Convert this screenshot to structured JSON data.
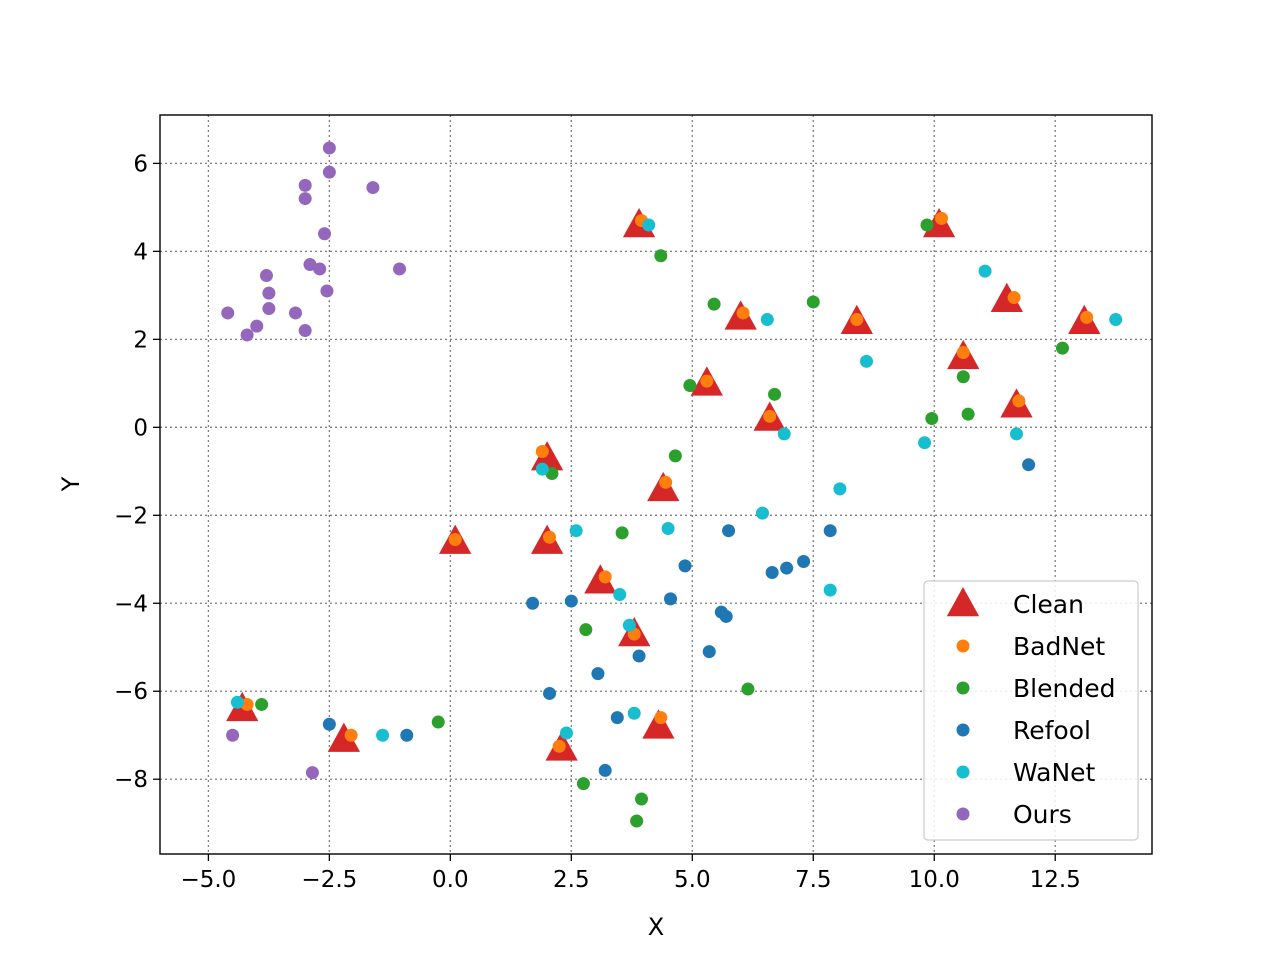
{
  "chart_data": {
    "type": "scatter",
    "title": "",
    "xlabel": "X",
    "ylabel": "Y",
    "xlim": [
      -6.0,
      14.5
    ],
    "ylim": [
      -9.7,
      7.1
    ],
    "xticks": [
      -5.0,
      -2.5,
      0.0,
      2.5,
      5.0,
      7.5,
      10.0,
      12.5
    ],
    "xtick_labels": [
      "−5.0",
      "−2.5",
      "0.0",
      "2.5",
      "5.0",
      "7.5",
      "10.0",
      "12.5"
    ],
    "yticks": [
      -8,
      -6,
      -4,
      -2,
      0,
      2,
      4,
      6
    ],
    "ytick_labels": [
      "−8",
      "−6",
      "−4",
      "−2",
      "0",
      "2",
      "4",
      "6"
    ],
    "grid": true,
    "legend_position": "lower-right",
    "series": [
      {
        "name": "Clean",
        "marker": "triangle",
        "color": "#d62728",
        "points": [
          [
            3.9,
            4.6
          ],
          [
            10.1,
            4.6
          ],
          [
            11.5,
            2.9
          ],
          [
            13.1,
            2.4
          ],
          [
            6.0,
            2.5
          ],
          [
            8.4,
            2.4
          ],
          [
            10.6,
            1.6
          ],
          [
            5.3,
            1.0
          ],
          [
            11.7,
            0.5
          ],
          [
            6.6,
            0.2
          ],
          [
            2.0,
            -0.7
          ],
          [
            4.4,
            -1.4
          ],
          [
            2.0,
            -2.6
          ],
          [
            0.1,
            -2.6
          ],
          [
            3.1,
            -3.5
          ],
          [
            3.8,
            -4.7
          ],
          [
            -4.3,
            -6.4
          ],
          [
            -2.2,
            -7.1
          ],
          [
            4.3,
            -6.8
          ],
          [
            2.3,
            -7.3
          ]
        ]
      },
      {
        "name": "BadNet",
        "marker": "dot",
        "color": "#ff7f0e",
        "points": [
          [
            3.95,
            4.7
          ],
          [
            10.15,
            4.75
          ],
          [
            11.65,
            2.95
          ],
          [
            13.15,
            2.5
          ],
          [
            6.05,
            2.6
          ],
          [
            8.4,
            2.45
          ],
          [
            10.6,
            1.7
          ],
          [
            5.3,
            1.05
          ],
          [
            11.75,
            0.6
          ],
          [
            6.6,
            0.25
          ],
          [
            1.9,
            -0.55
          ],
          [
            4.45,
            -1.25
          ],
          [
            2.05,
            -2.5
          ],
          [
            0.1,
            -2.55
          ],
          [
            3.2,
            -3.4
          ],
          [
            3.8,
            -4.7
          ],
          [
            -4.2,
            -6.3
          ],
          [
            -2.05,
            -7.0
          ],
          [
            4.35,
            -6.6
          ],
          [
            2.25,
            -7.25
          ]
        ]
      },
      {
        "name": "Blended",
        "marker": "dot",
        "color": "#2ca02c",
        "points": [
          [
            4.35,
            3.9
          ],
          [
            9.85,
            4.6
          ],
          [
            5.45,
            2.8
          ],
          [
            7.5,
            2.85
          ],
          [
            12.65,
            1.8
          ],
          [
            10.6,
            1.15
          ],
          [
            4.95,
            0.95
          ],
          [
            6.7,
            0.75
          ],
          [
            10.7,
            0.3
          ],
          [
            9.95,
            0.2
          ],
          [
            4.65,
            -0.65
          ],
          [
            2.1,
            -1.05
          ],
          [
            3.55,
            -2.4
          ],
          [
            2.8,
            -4.6
          ],
          [
            6.15,
            -5.95
          ],
          [
            -3.9,
            -6.3
          ],
          [
            -0.25,
            -6.7
          ],
          [
            2.75,
            -8.1
          ],
          [
            3.95,
            -8.45
          ],
          [
            3.85,
            -8.95
          ]
        ]
      },
      {
        "name": "Refool",
        "marker": "dot",
        "color": "#1f77b4",
        "points": [
          [
            11.95,
            -0.85
          ],
          [
            7.85,
            -2.35
          ],
          [
            5.75,
            -2.35
          ],
          [
            4.85,
            -3.15
          ],
          [
            7.3,
            -3.05
          ],
          [
            6.95,
            -3.2
          ],
          [
            6.65,
            -3.3
          ],
          [
            1.7,
            -4.0
          ],
          [
            2.5,
            -3.95
          ],
          [
            4.55,
            -3.9
          ],
          [
            5.6,
            -4.2
          ],
          [
            5.7,
            -4.3
          ],
          [
            3.9,
            -5.2
          ],
          [
            5.35,
            -5.1
          ],
          [
            3.05,
            -5.6
          ],
          [
            2.05,
            -6.05
          ],
          [
            3.45,
            -6.6
          ],
          [
            -2.5,
            -6.75
          ],
          [
            -0.9,
            -7.0
          ],
          [
            3.2,
            -7.8
          ]
        ]
      },
      {
        "name": "WaNet",
        "marker": "dot",
        "color": "#17becf",
        "points": [
          [
            4.1,
            4.6
          ],
          [
            11.05,
            3.55
          ],
          [
            13.75,
            2.45
          ],
          [
            6.55,
            2.45
          ],
          [
            8.6,
            1.5
          ],
          [
            6.9,
            -0.15
          ],
          [
            11.7,
            -0.15
          ],
          [
            9.8,
            -0.35
          ],
          [
            1.9,
            -0.95
          ],
          [
            8.05,
            -1.4
          ],
          [
            6.45,
            -1.95
          ],
          [
            4.5,
            -2.3
          ],
          [
            2.6,
            -2.35
          ],
          [
            7.85,
            -3.7
          ],
          [
            3.5,
            -3.8
          ],
          [
            3.7,
            -4.5
          ],
          [
            3.8,
            -6.5
          ],
          [
            -4.4,
            -6.25
          ],
          [
            -1.4,
            -7.0
          ],
          [
            2.4,
            -6.95
          ]
        ]
      },
      {
        "name": "Ours",
        "marker": "dot",
        "color": "#9467bd",
        "points": [
          [
            -2.5,
            6.35
          ],
          [
            -2.5,
            5.8
          ],
          [
            -3.0,
            5.5
          ],
          [
            -1.6,
            5.45
          ],
          [
            -3.0,
            5.2
          ],
          [
            -2.6,
            4.4
          ],
          [
            -2.9,
            3.7
          ],
          [
            -2.7,
            3.6
          ],
          [
            -1.05,
            3.6
          ],
          [
            -3.8,
            3.45
          ],
          [
            -2.55,
            3.1
          ],
          [
            -3.75,
            3.05
          ],
          [
            -3.75,
            2.7
          ],
          [
            -3.2,
            2.6
          ],
          [
            -4.6,
            2.6
          ],
          [
            -4.0,
            2.3
          ],
          [
            -3.0,
            2.2
          ],
          [
            -4.2,
            2.1
          ],
          [
            -4.5,
            -7.0
          ],
          [
            -2.85,
            -7.85
          ]
        ]
      }
    ]
  }
}
